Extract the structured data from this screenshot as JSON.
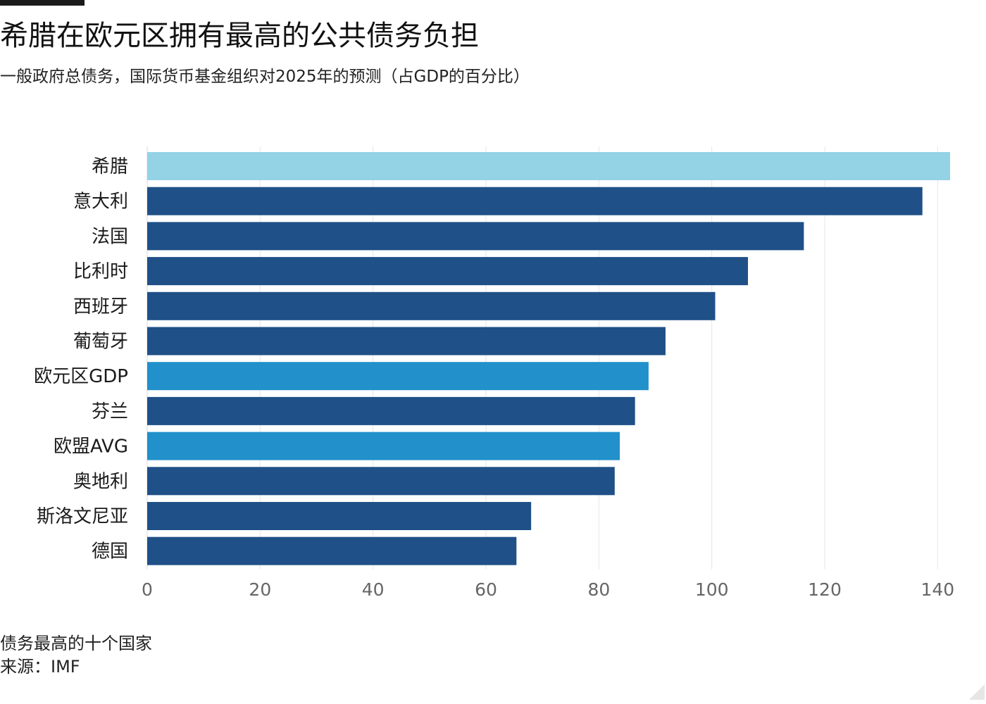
{
  "title": "希腊在欧元区拥有最高的公共债务负担",
  "subtitle": "一般政府总债务，国际货币基金组织对2025年的预测（占GDP的百分比）",
  "footer": {
    "note": "债务最高的十个国家",
    "source": "来源：IMF"
  },
  "colors": {
    "highlight": "#94d2e6",
    "country": "#1f5087",
    "aggregate": "#2190cb",
    "grid": "#e6e6e6",
    "tick_text": "#666666"
  },
  "chart_data": {
    "type": "bar",
    "orientation": "horizontal",
    "title": "希腊在欧元区拥有最高的公共债务负担",
    "subtitle": "一般政府总债务，国际货币基金组织对2025年的预测（占GDP的百分比）",
    "categories": [
      "希腊",
      "意大利",
      "法国",
      "比利时",
      "西班牙",
      "葡萄牙",
      "欧元区GDP",
      "芬兰",
      "欧盟AVG",
      "奥地利",
      "斯洛文尼亚",
      "德国"
    ],
    "values": [
      142.2,
      137.3,
      116.3,
      106.4,
      100.6,
      91.8,
      88.8,
      86.4,
      83.7,
      82.8,
      68.0,
      65.4
    ],
    "kinds": [
      "highlight",
      "country",
      "country",
      "country",
      "country",
      "country",
      "aggregate",
      "country",
      "aggregate",
      "country",
      "country",
      "country"
    ],
    "xlim": [
      0,
      142.2
    ],
    "xticks": [
      0,
      20,
      40,
      60,
      80,
      100,
      120,
      140
    ],
    "grid": true,
    "xlabel": "",
    "ylabel": ""
  }
}
